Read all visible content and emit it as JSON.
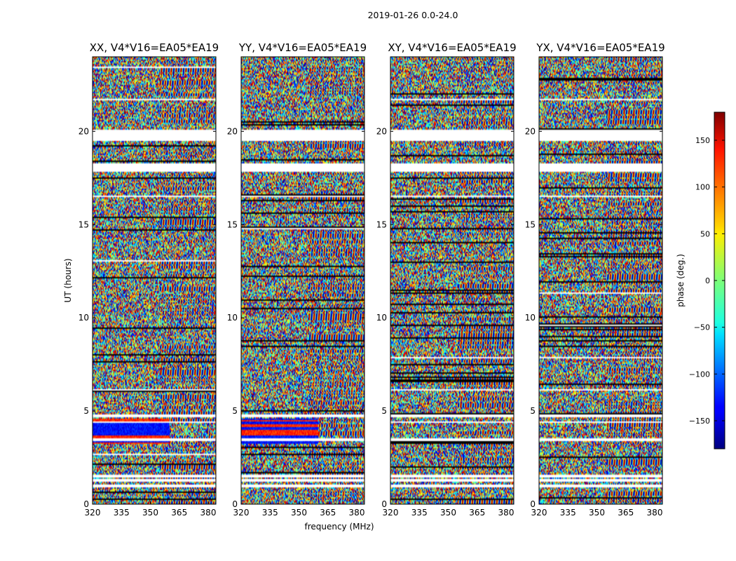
{
  "chart_data": {
    "type": "heatmap",
    "suptitle": "2019-01-26 0.0-24.0",
    "xlabel": "frequency (MHz)",
    "ylabel": "UT (hours)",
    "xlim": [
      320,
      384
    ],
    "ylim": [
      0,
      24
    ],
    "xticks": [
      320,
      335,
      350,
      365,
      380
    ],
    "yticks": [
      0,
      5,
      10,
      15,
      20
    ],
    "colorbar": {
      "label": "phase (deg.)",
      "range": [
        -180,
        180
      ],
      "ticks": [
        150,
        100,
        50,
        0,
        -50,
        -100,
        -150
      ],
      "tick_labels": [
        "150",
        "100",
        "50",
        "0",
        "−50",
        "−100",
        "−150"
      ],
      "colormap": "jet"
    },
    "panels": [
      {
        "title": "XX, V4*V16=EA05*EA19"
      },
      {
        "title": "YY, V4*V16=EA05*EA19"
      },
      {
        "title": "XY, V4*V16=EA05*EA19"
      },
      {
        "title": "YX, V4*V16=EA05*EA19"
      }
    ],
    "flagged_ut_ranges": [
      [
        0.93,
        1.08
      ],
      [
        1.23,
        1.33
      ],
      [
        1.45,
        1.55
      ],
      [
        3.38,
        3.5
      ],
      [
        4.7,
        4.85
      ],
      [
        17.85,
        18.3
      ],
      [
        19.45,
        20.1
      ]
    ]
  }
}
